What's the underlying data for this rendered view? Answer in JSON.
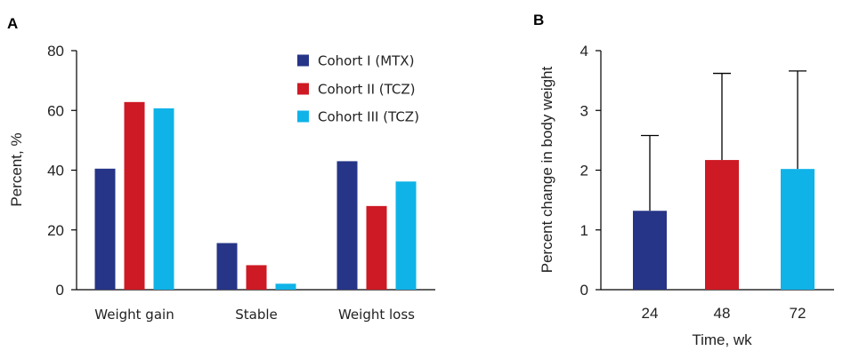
{
  "colors": {
    "cohort1": "#263587",
    "cohort2": "#cd1a24",
    "cohort3": "#0fb3e8"
  },
  "chart_data": [
    {
      "panel": "A",
      "type": "bar",
      "title": "",
      "xlabel": "",
      "ylabel": "Percent, %",
      "ylim": [
        0,
        80
      ],
      "yticks": [
        0,
        20,
        40,
        60,
        80
      ],
      "categories": [
        "Weight gain",
        "Stable",
        "Weight loss"
      ],
      "series": [
        {
          "name": "Cohort I (MTX)",
          "color": "#263587",
          "values": [
            40.5,
            15.6,
            43.0
          ]
        },
        {
          "name": "Cohort II (TCZ)",
          "color": "#cd1a24",
          "values": [
            62.8,
            8.2,
            28.0
          ]
        },
        {
          "name": "Cohort III (TCZ)",
          "color": "#0fb3e8",
          "values": [
            60.7,
            2.0,
            36.2
          ]
        }
      ],
      "legend": "top-right",
      "grid": false
    },
    {
      "panel": "B",
      "type": "bar",
      "title": "",
      "xlabel": "Time, wk",
      "ylabel": "Percent change in body weight",
      "ylim": [
        0,
        4
      ],
      "yticks": [
        0,
        1,
        2,
        3,
        4
      ],
      "categories": [
        "24",
        "48",
        "72"
      ],
      "values": [
        1.32,
        2.17,
        2.02
      ],
      "error_upper": [
        2.58,
        3.62,
        3.66
      ],
      "colors": [
        "#263587",
        "#cd1a24",
        "#0fb3e8"
      ],
      "grid": false
    }
  ]
}
